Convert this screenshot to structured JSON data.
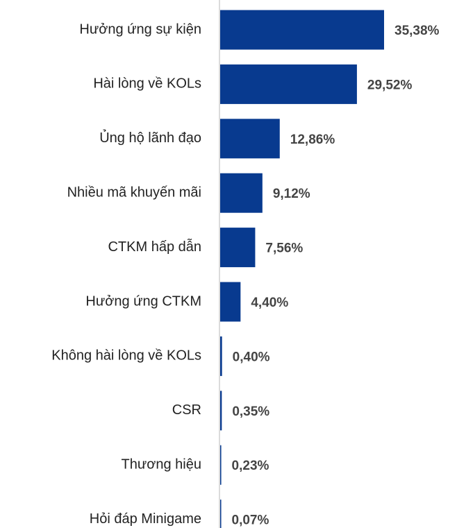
{
  "chart_data": {
    "type": "barh",
    "categories": [
      "Hưởng ứng sự kiện",
      "Hài lòng về KOLs",
      "Ủng hộ lãnh đạo",
      "Nhiều mã khuyến mãi",
      "CTKM hấp dẫn",
      "Hưởng ứng CTKM",
      "Không hài lòng về KOLs",
      "CSR",
      "Thương hiệu",
      "Hỏi đáp Minigame"
    ],
    "values": [
      35.38,
      29.52,
      12.86,
      9.12,
      7.56,
      4.4,
      0.4,
      0.35,
      0.23,
      0.07
    ],
    "value_labels": [
      "35,38%",
      "29,52%",
      "12,86%",
      "9,12%",
      "7,56%",
      "4,40%",
      "0,40%",
      "0,35%",
      "0,23%",
      "0,07%"
    ],
    "color": "#083a8f"
  }
}
